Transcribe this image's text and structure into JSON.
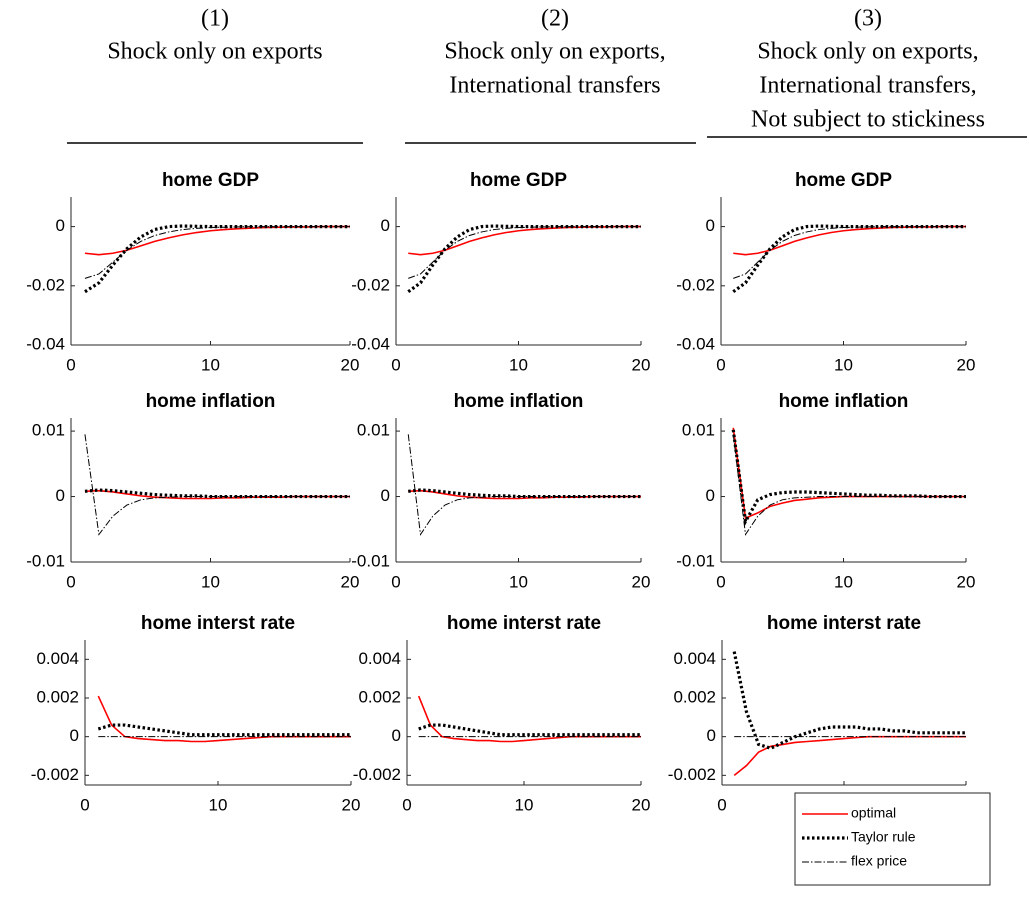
{
  "column_headers": [
    {
      "number": "(1)",
      "lines": [
        "Shock only on exports"
      ]
    },
    {
      "number": "(2)",
      "lines": [
        "Shock only on exports,",
        "International transfers"
      ]
    },
    {
      "number": "(3)",
      "lines": [
        "Shock only on exports,",
        "International transfers,",
        "Not subject to stickiness"
      ]
    }
  ],
  "chart_data": [
    {
      "type": "line",
      "title": "home GDP",
      "x": [
        1,
        2,
        3,
        4,
        5,
        6,
        7,
        8,
        9,
        10,
        11,
        12,
        13,
        14,
        15,
        16,
        17,
        18,
        19,
        20
      ],
      "xlim": [
        0,
        20
      ],
      "xticks": [
        0,
        10,
        20
      ],
      "ylim": [
        -0.04,
        0.01
      ],
      "yticks": [
        -0.04,
        -0.02,
        0
      ],
      "series": [
        {
          "name": "optimal",
          "color": "#ff0000",
          "line_style": "solid",
          "values": [
            -0.009,
            -0.0095,
            -0.009,
            -0.008,
            -0.0065,
            -0.005,
            -0.0038,
            -0.0028,
            -0.002,
            -0.0014,
            -0.001,
            -0.0007,
            -0.0005,
            -0.0003,
            -0.0002,
            -0.0001,
            -0.0001,
            0,
            0,
            0
          ]
        },
        {
          "name": "Taylor rule",
          "color": "#000000",
          "line_style": "dotted",
          "values": [
            -0.022,
            -0.019,
            -0.013,
            -0.0075,
            -0.0035,
            -0.001,
            0,
            0.0002,
            0.0001,
            0,
            0,
            0,
            0,
            0,
            0,
            0,
            0,
            0,
            0,
            0
          ]
        },
        {
          "name": "flex price",
          "color": "#000000",
          "line_style": "dashdot",
          "values": [
            -0.0175,
            -0.016,
            -0.012,
            -0.008,
            -0.005,
            -0.003,
            -0.0018,
            -0.001,
            -0.0006,
            -0.0003,
            -0.0002,
            -0.0001,
            0,
            0,
            0,
            0,
            0,
            0,
            0,
            0
          ]
        }
      ]
    },
    {
      "type": "line",
      "title": "home GDP",
      "x": [
        1,
        2,
        3,
        4,
        5,
        6,
        7,
        8,
        9,
        10,
        11,
        12,
        13,
        14,
        15,
        16,
        17,
        18,
        19,
        20
      ],
      "xlim": [
        0,
        20
      ],
      "xticks": [
        0,
        10,
        20
      ],
      "ylim": [
        -0.04,
        0.01
      ],
      "yticks": [
        -0.04,
        -0.02,
        0
      ],
      "series": [
        {
          "name": "optimal",
          "color": "#ff0000",
          "line_style": "solid",
          "values": [
            -0.009,
            -0.0095,
            -0.009,
            -0.008,
            -0.0065,
            -0.005,
            -0.0038,
            -0.0028,
            -0.002,
            -0.0014,
            -0.001,
            -0.0007,
            -0.0005,
            -0.0003,
            -0.0002,
            -0.0001,
            -0.0001,
            0,
            0,
            0
          ]
        },
        {
          "name": "Taylor rule",
          "color": "#000000",
          "line_style": "dotted",
          "values": [
            -0.022,
            -0.019,
            -0.013,
            -0.0075,
            -0.0035,
            -0.001,
            0,
            0.0002,
            0.0001,
            0,
            0,
            0,
            0,
            0,
            0,
            0,
            0,
            0,
            0,
            0
          ]
        },
        {
          "name": "flex price",
          "color": "#000000",
          "line_style": "dashdot",
          "values": [
            -0.0175,
            -0.016,
            -0.012,
            -0.008,
            -0.005,
            -0.003,
            -0.0018,
            -0.001,
            -0.0006,
            -0.0003,
            -0.0002,
            -0.0001,
            0,
            0,
            0,
            0,
            0,
            0,
            0,
            0
          ]
        }
      ]
    },
    {
      "type": "line",
      "title": "home GDP",
      "x": [
        1,
        2,
        3,
        4,
        5,
        6,
        7,
        8,
        9,
        10,
        11,
        12,
        13,
        14,
        15,
        16,
        17,
        18,
        19,
        20
      ],
      "xlim": [
        0,
        20
      ],
      "xticks": [
        0,
        10,
        20
      ],
      "ylim": [
        -0.04,
        0.01
      ],
      "yticks": [
        -0.04,
        -0.02,
        0
      ],
      "series": [
        {
          "name": "optimal",
          "color": "#ff0000",
          "line_style": "solid",
          "values": [
            -0.009,
            -0.0095,
            -0.009,
            -0.008,
            -0.0065,
            -0.005,
            -0.0038,
            -0.0028,
            -0.002,
            -0.0014,
            -0.001,
            -0.0007,
            -0.0005,
            -0.0003,
            -0.0002,
            -0.0001,
            -0.0001,
            0,
            0,
            0
          ]
        },
        {
          "name": "Taylor rule",
          "color": "#000000",
          "line_style": "dotted",
          "values": [
            -0.022,
            -0.019,
            -0.013,
            -0.0075,
            -0.0035,
            -0.001,
            0,
            0.0002,
            0.0001,
            0,
            0,
            0,
            0,
            0,
            0,
            0,
            0,
            0,
            0,
            0
          ]
        },
        {
          "name": "flex price",
          "color": "#000000",
          "line_style": "dashdot",
          "values": [
            -0.0175,
            -0.016,
            -0.012,
            -0.008,
            -0.005,
            -0.003,
            -0.0018,
            -0.001,
            -0.0006,
            -0.0003,
            -0.0002,
            -0.0001,
            0,
            0,
            0,
            0,
            0,
            0,
            0,
            0
          ]
        }
      ]
    },
    {
      "type": "line",
      "title": "home inflation",
      "x": [
        1,
        2,
        3,
        4,
        5,
        6,
        7,
        8,
        9,
        10,
        11,
        12,
        13,
        14,
        15,
        16,
        17,
        18,
        19,
        20
      ],
      "xlim": [
        0,
        20
      ],
      "xticks": [
        0,
        10,
        20
      ],
      "ylim": [
        -0.01,
        0.012
      ],
      "yticks": [
        -0.01,
        0,
        0.01
      ],
      "series": [
        {
          "name": "optimal",
          "color": "#ff0000",
          "line_style": "solid",
          "values": [
            0.0008,
            0.0009,
            0.0007,
            0.0004,
            0.0001,
            -0.0001,
            -0.0002,
            -0.0003,
            -0.0003,
            -0.0003,
            -0.0002,
            -0.0002,
            -0.0001,
            -0.0001,
            -0.0001,
            0,
            0,
            0,
            0,
            0
          ]
        },
        {
          "name": "Taylor rule",
          "color": "#000000",
          "line_style": "dotted",
          "values": [
            0.0008,
            0.001,
            0.0009,
            0.0007,
            0.0005,
            0.0003,
            0.0002,
            0.0001,
            0.0001,
            0,
            0,
            0,
            0,
            0,
            0,
            0,
            0,
            0,
            0,
            0
          ]
        },
        {
          "name": "flex price",
          "color": "#000000",
          "line_style": "dashdot",
          "values": [
            0.0095,
            -0.0058,
            -0.003,
            -0.0013,
            -0.0005,
            -0.0002,
            -0.0001,
            0,
            0,
            0,
            0,
            0,
            0,
            0,
            0,
            0,
            0,
            0,
            0,
            0
          ]
        }
      ]
    },
    {
      "type": "line",
      "title": "home inflation",
      "x": [
        1,
        2,
        3,
        4,
        5,
        6,
        7,
        8,
        9,
        10,
        11,
        12,
        13,
        14,
        15,
        16,
        17,
        18,
        19,
        20
      ],
      "xlim": [
        0,
        20
      ],
      "xticks": [
        0,
        10,
        20
      ],
      "ylim": [
        -0.01,
        0.012
      ],
      "yticks": [
        -0.01,
        0,
        0.01
      ],
      "series": [
        {
          "name": "optimal",
          "color": "#ff0000",
          "line_style": "solid",
          "values": [
            0.0008,
            0.0009,
            0.0007,
            0.0004,
            0.0001,
            -0.0001,
            -0.0002,
            -0.0003,
            -0.0003,
            -0.0003,
            -0.0002,
            -0.0002,
            -0.0001,
            -0.0001,
            -0.0001,
            0,
            0,
            0,
            0,
            0
          ]
        },
        {
          "name": "Taylor rule",
          "color": "#000000",
          "line_style": "dotted",
          "values": [
            0.0008,
            0.001,
            0.0009,
            0.0007,
            0.0005,
            0.0003,
            0.0002,
            0.0001,
            0.0001,
            0,
            0,
            0,
            0,
            0,
            0,
            0,
            0,
            0,
            0,
            0
          ]
        },
        {
          "name": "flex price",
          "color": "#000000",
          "line_style": "dashdot",
          "values": [
            0.0095,
            -0.0058,
            -0.003,
            -0.0013,
            -0.0005,
            -0.0002,
            -0.0001,
            0,
            0,
            0,
            0,
            0,
            0,
            0,
            0,
            0,
            0,
            0,
            0,
            0
          ]
        }
      ]
    },
    {
      "type": "line",
      "title": "home inflation",
      "x": [
        1,
        2,
        3,
        4,
        5,
        6,
        7,
        8,
        9,
        10,
        11,
        12,
        13,
        14,
        15,
        16,
        17,
        18,
        19,
        20
      ],
      "xlim": [
        0,
        20
      ],
      "xticks": [
        0,
        10,
        20
      ],
      "ylim": [
        -0.01,
        0.012
      ],
      "yticks": [
        -0.01,
        0,
        0.01
      ],
      "series": [
        {
          "name": "optimal",
          "color": "#ff0000",
          "line_style": "solid",
          "values": [
            0.0105,
            -0.0033,
            -0.0025,
            -0.0015,
            -0.001,
            -0.0006,
            -0.0004,
            -0.0002,
            -0.0001,
            0,
            0,
            0,
            0,
            0,
            0,
            0,
            0,
            0,
            0,
            0
          ]
        },
        {
          "name": "Taylor rule",
          "color": "#000000",
          "line_style": "dotted",
          "values": [
            0.0102,
            -0.0038,
            -0.0005,
            0.0003,
            0.0006,
            0.0007,
            0.0007,
            0.0006,
            0.0005,
            0.0004,
            0.0003,
            0.0002,
            0.0002,
            0.0001,
            0.0001,
            0.0001,
            0,
            0,
            0,
            0
          ]
        },
        {
          "name": "flex price",
          "color": "#000000",
          "line_style": "dashdot",
          "values": [
            0.0095,
            -0.0058,
            -0.003,
            -0.0013,
            -0.0005,
            -0.0002,
            -0.0001,
            0,
            0,
            0,
            0,
            0,
            0,
            0,
            0,
            0,
            0,
            0,
            0,
            0
          ]
        }
      ]
    },
    {
      "type": "line",
      "title": "home interst rate",
      "x": [
        1,
        2,
        3,
        4,
        5,
        6,
        7,
        8,
        9,
        10,
        11,
        12,
        13,
        14,
        15,
        16,
        17,
        18,
        19,
        20
      ],
      "xlim": [
        0,
        20
      ],
      "xticks": [
        0,
        10,
        20
      ],
      "ylim": [
        -0.0025,
        0.005
      ],
      "yticks": [
        -0.002,
        0,
        0.002,
        0.004
      ],
      "series": [
        {
          "name": "optimal",
          "color": "#ff0000",
          "line_style": "solid",
          "values": [
            0.0021,
            0.0006,
            0,
            -0.0001,
            -0.00015,
            -0.0002,
            -0.0002,
            -0.00025,
            -0.00025,
            -0.0002,
            -0.00015,
            -0.0001,
            -5e-05,
            0,
            0,
            0,
            0,
            0,
            0,
            0
          ]
        },
        {
          "name": "Taylor rule",
          "color": "#000000",
          "line_style": "dotted",
          "values": [
            0.0004,
            0.0006,
            0.0006,
            0.0005,
            0.0004,
            0.0003,
            0.0002,
            0.0001,
            0.0001,
            0.0001,
            0.0001,
            0.0001,
            0.0001,
            0.0001,
            0.0001,
            0.0001,
            0.0001,
            0.0001,
            0.0001,
            0.0001
          ]
        },
        {
          "name": "flex price",
          "color": "#000000",
          "line_style": "dashdot",
          "values": [
            0,
            0,
            0,
            0,
            0,
            0,
            0,
            0,
            0,
            0,
            0,
            0,
            0,
            0,
            0,
            0,
            0,
            0,
            0,
            0
          ]
        }
      ]
    },
    {
      "type": "line",
      "title": "home interst rate",
      "x": [
        1,
        2,
        3,
        4,
        5,
        6,
        7,
        8,
        9,
        10,
        11,
        12,
        13,
        14,
        15,
        16,
        17,
        18,
        19,
        20
      ],
      "xlim": [
        0,
        20
      ],
      "xticks": [
        0,
        10,
        20
      ],
      "ylim": [
        -0.0025,
        0.005
      ],
      "yticks": [
        -0.002,
        0,
        0.002,
        0.004
      ],
      "series": [
        {
          "name": "optimal",
          "color": "#ff0000",
          "line_style": "solid",
          "values": [
            0.0021,
            0.0006,
            0,
            -0.0001,
            -0.00015,
            -0.0002,
            -0.0002,
            -0.00025,
            -0.00025,
            -0.0002,
            -0.00015,
            -0.0001,
            -5e-05,
            0,
            0,
            0,
            0,
            0,
            0,
            0
          ]
        },
        {
          "name": "Taylor rule",
          "color": "#000000",
          "line_style": "dotted",
          "values": [
            0.0004,
            0.0006,
            0.0006,
            0.0005,
            0.0004,
            0.0003,
            0.0002,
            0.0001,
            0.0001,
            0.0001,
            0.0001,
            0.0001,
            0.0001,
            0.0001,
            0.0001,
            0.0001,
            0.0001,
            0.0001,
            0.0001,
            0.0001
          ]
        },
        {
          "name": "flex price",
          "color": "#000000",
          "line_style": "dashdot",
          "values": [
            0,
            0,
            0,
            0,
            0,
            0,
            0,
            0,
            0,
            0,
            0,
            0,
            0,
            0,
            0,
            0,
            0,
            0,
            0,
            0
          ]
        }
      ]
    },
    {
      "type": "line",
      "title": "home interst rate",
      "x": [
        1,
        2,
        3,
        4,
        5,
        6,
        7,
        8,
        9,
        10,
        11,
        12,
        13,
        14,
        15,
        16,
        17,
        18,
        19,
        20
      ],
      "xlim": [
        0,
        20
      ],
      "xticks": [
        0,
        10,
        20
      ],
      "ylim": [
        -0.0025,
        0.005
      ],
      "yticks": [
        -0.002,
        0,
        0.002,
        0.004
      ],
      "series": [
        {
          "name": "optimal",
          "color": "#ff0000",
          "line_style": "solid",
          "values": [
            -0.002,
            -0.0015,
            -0.0008,
            -0.0005,
            -0.0004,
            -0.0003,
            -0.00025,
            -0.0002,
            -0.00015,
            -0.0001,
            -5e-05,
            0,
            0,
            0,
            0,
            0,
            0,
            0,
            0,
            0
          ]
        },
        {
          "name": "Taylor rule",
          "color": "#000000",
          "line_style": "dotted",
          "values": [
            0.0044,
            0.0013,
            -0.0004,
            -0.0006,
            -0.0003,
            0,
            0.0002,
            0.0004,
            0.0005,
            0.0005,
            0.0005,
            0.0004,
            0.0004,
            0.0003,
            0.0003,
            0.0002,
            0.0002,
            0.0002,
            0.0002,
            0.0002
          ]
        },
        {
          "name": "flex price",
          "color": "#000000",
          "line_style": "dashdot",
          "values": [
            0,
            0,
            0,
            0,
            0,
            0,
            0,
            0,
            0,
            0,
            0,
            0,
            0,
            0,
            0,
            0,
            0,
            0,
            0,
            0
          ]
        }
      ]
    }
  ]
}
